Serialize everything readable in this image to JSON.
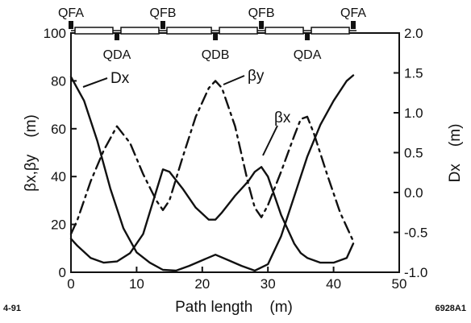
{
  "chart_data": {
    "type": "line",
    "xlabel": "Path length    (m)",
    "ylabel_left": "βx,βy    (m)",
    "ylabel_right": "Dx    (m)",
    "xlim": [
      0,
      50
    ],
    "ylim_left": [
      0,
      100
    ],
    "ylim_right": [
      -1.0,
      2.0
    ],
    "x_ticks": [
      "0",
      "10",
      "20",
      "30",
      "40",
      "50"
    ],
    "y_left_ticks": [
      "0",
      "20",
      "40",
      "60",
      "80",
      "100"
    ],
    "y_right_ticks": [
      "-1.0",
      "-0.5",
      "0.0",
      "0.5",
      "1.0",
      "1.5",
      "2.0"
    ],
    "grid": false,
    "series": [
      {
        "name": "βx",
        "axis": "left",
        "style": "solid",
        "points": [
          [
            0,
            14
          ],
          [
            1,
            11
          ],
          [
            3,
            6
          ],
          [
            5,
            4
          ],
          [
            7,
            4.5
          ],
          [
            9,
            8
          ],
          [
            11,
            16
          ],
          [
            13,
            34
          ],
          [
            14,
            43
          ],
          [
            15,
            42
          ],
          [
            17,
            35
          ],
          [
            19,
            27
          ],
          [
            21,
            22
          ],
          [
            22,
            22
          ],
          [
            23,
            25
          ],
          [
            25,
            32
          ],
          [
            27,
            38
          ],
          [
            28,
            42
          ],
          [
            29,
            44
          ],
          [
            30,
            40
          ],
          [
            32,
            24
          ],
          [
            34,
            12
          ],
          [
            35,
            8
          ],
          [
            36,
            6
          ],
          [
            38,
            4
          ],
          [
            40,
            4
          ],
          [
            42,
            6
          ],
          [
            43,
            12
          ]
        ]
      },
      {
        "name": "βy",
        "axis": "left",
        "style": "dash-dot",
        "points": [
          [
            0,
            16
          ],
          [
            1,
            22
          ],
          [
            3,
            38
          ],
          [
            5,
            51
          ],
          [
            7,
            61
          ],
          [
            9,
            54
          ],
          [
            11,
            41
          ],
          [
            13,
            30
          ],
          [
            14,
            26
          ],
          [
            15,
            30
          ],
          [
            17,
            48
          ],
          [
            19,
            65
          ],
          [
            21,
            77
          ],
          [
            22,
            80
          ],
          [
            23,
            77
          ],
          [
            25,
            61
          ],
          [
            27,
            37
          ],
          [
            28,
            27
          ],
          [
            29,
            23
          ],
          [
            30,
            28
          ],
          [
            32,
            42
          ],
          [
            34,
            57
          ],
          [
            35,
            64
          ],
          [
            36,
            65
          ],
          [
            37,
            58
          ],
          [
            39,
            41
          ],
          [
            41,
            25
          ],
          [
            43,
            13
          ]
        ]
      },
      {
        "name": "Dx",
        "axis": "right",
        "style": "solid",
        "points": [
          [
            0,
            1.45
          ],
          [
            2,
            1.15
          ],
          [
            4,
            0.65
          ],
          [
            6,
            0.05
          ],
          [
            8,
            -0.45
          ],
          [
            10,
            -0.75
          ],
          [
            12,
            -0.88
          ],
          [
            14,
            -0.97
          ],
          [
            16,
            -0.98
          ],
          [
            18,
            -0.92
          ],
          [
            20,
            -0.85
          ],
          [
            22,
            -0.78
          ],
          [
            24,
            -0.85
          ],
          [
            26,
            -0.92
          ],
          [
            28,
            -0.98
          ],
          [
            30,
            -0.9
          ],
          [
            32,
            -0.55
          ],
          [
            34,
            -0.05
          ],
          [
            36,
            0.45
          ],
          [
            38,
            0.85
          ],
          [
            40,
            1.15
          ],
          [
            42,
            1.4
          ],
          [
            43,
            1.47
          ]
        ]
      }
    ],
    "annotations": [
      {
        "text": "Dx",
        "target": "Dx"
      },
      {
        "text": "βy",
        "target": "βy"
      },
      {
        "text": "βx",
        "target": "βx"
      }
    ],
    "lattice": {
      "focusing_labels": [
        {
          "text": "QFA",
          "x": 0
        },
        {
          "text": "QFB",
          "x": 14
        },
        {
          "text": "QFB",
          "x": 29
        },
        {
          "text": "QFA",
          "x": 43
        }
      ],
      "defocusing_labels": [
        {
          "text": "QDA",
          "x": 7
        },
        {
          "text": "QDB",
          "x": 22
        },
        {
          "text": "QDA",
          "x": 36
        }
      ]
    }
  },
  "footer": {
    "left": "4-91",
    "right": "6928A1"
  }
}
